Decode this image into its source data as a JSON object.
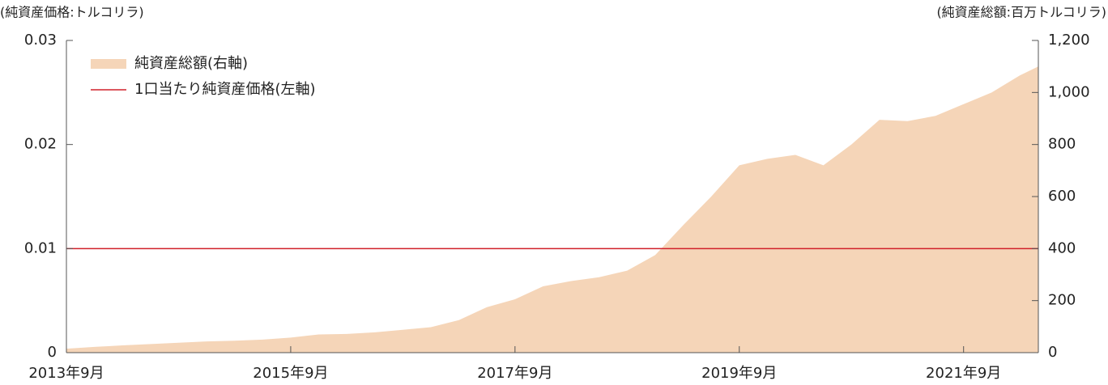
{
  "chart_data": {
    "type": "area-line",
    "y_label": "(純資産価格:トルコリラ)",
    "y2_label": "(純資産総額:百万トルコリラ)",
    "xlim": [
      "2013-09",
      "2022-05"
    ],
    "xticks": [
      {
        "value": "2013-09",
        "label": "2013年9月"
      },
      {
        "value": "2015-09",
        "label": "2015年9月"
      },
      {
        "value": "2017-09",
        "label": "2017年9月"
      },
      {
        "value": "2019-09",
        "label": "2019年9月"
      },
      {
        "value": "2021-09",
        "label": "2021年9月"
      }
    ],
    "ylim": [
      0,
      0.03
    ],
    "yticks": [
      0,
      0.01,
      0.02,
      0.03
    ],
    "y2lim": [
      0,
      1200
    ],
    "y2ticks": [
      0,
      200,
      400,
      600,
      800,
      {
        "value": 1000,
        "label": "1,000"
      },
      {
        "value": 1200,
        "label": "1,200"
      }
    ],
    "legend": "upper left",
    "series": [
      {
        "name": "純資産総額(右軸)",
        "type": "area",
        "axis": "y2",
        "color": "#f5d5b8",
        "x": [
          "2013-09",
          "2013-12",
          "2014-03",
          "2014-06",
          "2014-09",
          "2014-12",
          "2015-03",
          "2015-06",
          "2015-09",
          "2015-12",
          "2016-03",
          "2016-06",
          "2016-09",
          "2016-12",
          "2017-03",
          "2017-06",
          "2017-09",
          "2017-12",
          "2018-03",
          "2018-06",
          "2018-09",
          "2018-12",
          "2019-03",
          "2019-06",
          "2019-09",
          "2019-12",
          "2020-03",
          "2020-06",
          "2020-09",
          "2020-12",
          "2021-03",
          "2021-06",
          "2021-09",
          "2021-12",
          "2022-03",
          "2022-05"
        ],
        "values": [
          15,
          22,
          28,
          33,
          38,
          43,
          46,
          50,
          58,
          70,
          72,
          78,
          88,
          98,
          125,
          175,
          205,
          255,
          275,
          290,
          315,
          375,
          490,
          600,
          720,
          745,
          760,
          720,
          800,
          895,
          890,
          910,
          955,
          1000,
          1065,
          1100
        ]
      },
      {
        "name": "1口当たり純資産価格(左軸)",
        "type": "line",
        "axis": "y",
        "color": "#d0202a",
        "x": [
          "2013-09",
          "2022-05"
        ],
        "values": [
          0.01,
          0.01
        ]
      }
    ]
  }
}
